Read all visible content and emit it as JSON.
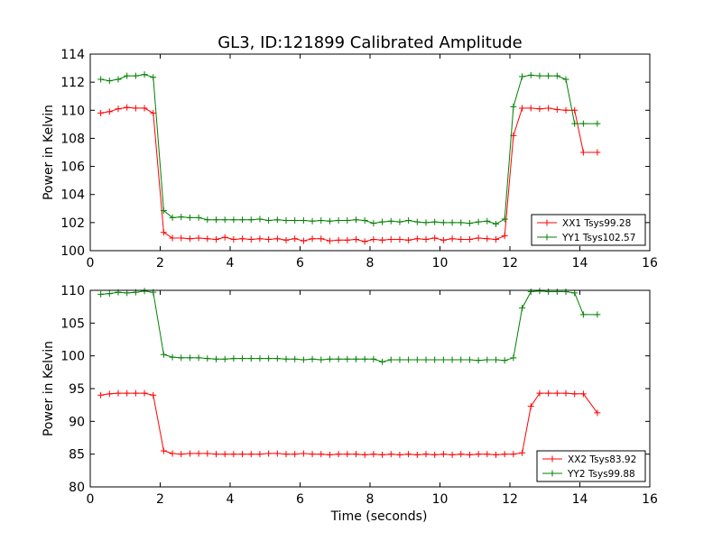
{
  "title": "GL3, ID:121899 Calibrated Amplitude",
  "colors": {
    "xx": "#ff0000",
    "yy": "#008000",
    "axis": "#000000"
  },
  "chart_data": [
    {
      "type": "line",
      "title": "GL3, ID:121899 Calibrated Amplitude",
      "xlabel": "",
      "ylabel": "Power in Kelvin",
      "xlim": [
        0,
        16
      ],
      "ylim": [
        100,
        114
      ],
      "xticks": [
        0,
        2,
        4,
        6,
        8,
        10,
        12,
        14,
        16
      ],
      "yticks": [
        100,
        102,
        104,
        106,
        108,
        110,
        112,
        114
      ],
      "legend_position": "bottom-right",
      "x": [
        0.3,
        0.55,
        0.8,
        1.05,
        1.3,
        1.55,
        1.8,
        2.1,
        2.35,
        2.6,
        2.85,
        3.1,
        3.35,
        3.6,
        3.85,
        4.1,
        4.35,
        4.6,
        4.85,
        5.1,
        5.35,
        5.6,
        5.85,
        6.1,
        6.35,
        6.6,
        6.85,
        7.1,
        7.35,
        7.6,
        7.85,
        8.1,
        8.35,
        8.6,
        8.85,
        9.1,
        9.35,
        9.6,
        9.85,
        10.1,
        10.35,
        10.6,
        10.85,
        11.1,
        11.35,
        11.6,
        11.85,
        12.1,
        12.35,
        12.6,
        12.85,
        13.1,
        13.35,
        13.6,
        13.85,
        14.1,
        14.5
      ],
      "series": [
        {
          "name": "XX1 Tsys99.28",
          "color": "#ff0000",
          "values": [
            109.8,
            109.9,
            110.1,
            110.2,
            110.15,
            110.15,
            109.8,
            101.3,
            100.9,
            100.9,
            100.85,
            100.9,
            100.85,
            100.8,
            100.95,
            100.8,
            100.85,
            100.8,
            100.85,
            100.8,
            100.85,
            100.75,
            100.85,
            100.7,
            100.85,
            100.85,
            100.7,
            100.75,
            100.75,
            100.8,
            100.65,
            100.8,
            100.75,
            100.8,
            100.8,
            100.75,
            100.85,
            100.8,
            100.9,
            100.75,
            100.85,
            100.8,
            100.8,
            100.9,
            100.85,
            100.8,
            101.05,
            108.2,
            110.15,
            110.15,
            110.1,
            110.15,
            110.05,
            110.0,
            110.0,
            107.0,
            107.0
          ]
        },
        {
          "name": "YY1 Tsys102.57",
          "color": "#008000",
          "values": [
            112.2,
            112.1,
            112.2,
            112.45,
            112.45,
            112.55,
            112.35,
            102.85,
            102.35,
            102.4,
            102.35,
            102.35,
            102.2,
            102.2,
            102.2,
            102.2,
            102.2,
            102.2,
            102.25,
            102.15,
            102.2,
            102.15,
            102.15,
            102.15,
            102.1,
            102.15,
            102.1,
            102.15,
            102.15,
            102.2,
            102.15,
            101.95,
            102.05,
            102.1,
            102.05,
            102.15,
            102.05,
            102.0,
            102.05,
            102.0,
            102.0,
            102.0,
            101.95,
            102.05,
            102.1,
            101.9,
            102.25,
            110.25,
            112.4,
            112.5,
            112.45,
            112.45,
            112.45,
            112.2,
            109.05,
            109.05,
            109.05
          ]
        }
      ]
    },
    {
      "type": "line",
      "title": "",
      "xlabel": "Time (seconds)",
      "ylabel": "Power in Kelvin",
      "xlim": [
        0,
        16
      ],
      "ylim": [
        80,
        110
      ],
      "xticks": [
        0,
        2,
        4,
        6,
        8,
        10,
        12,
        14,
        16
      ],
      "yticks": [
        80,
        85,
        90,
        95,
        100,
        105,
        110
      ],
      "legend_position": "bottom-right",
      "x": [
        0.3,
        0.55,
        0.8,
        1.05,
        1.3,
        1.55,
        1.8,
        2.1,
        2.35,
        2.6,
        2.85,
        3.1,
        3.35,
        3.6,
        3.85,
        4.1,
        4.35,
        4.6,
        4.85,
        5.1,
        5.35,
        5.6,
        5.85,
        6.1,
        6.35,
        6.6,
        6.85,
        7.1,
        7.35,
        7.6,
        7.85,
        8.1,
        8.35,
        8.6,
        8.85,
        9.1,
        9.35,
        9.6,
        9.85,
        10.1,
        10.35,
        10.6,
        10.85,
        11.1,
        11.35,
        11.6,
        11.85,
        12.1,
        12.35,
        12.6,
        12.85,
        13.1,
        13.35,
        13.6,
        13.85,
        14.1,
        14.5
      ],
      "series": [
        {
          "name": "XX2 Tsys83.92",
          "color": "#ff0000",
          "values": [
            94.0,
            94.2,
            94.3,
            94.3,
            94.3,
            94.3,
            94.0,
            85.5,
            85.1,
            85.0,
            85.1,
            85.1,
            85.1,
            85.0,
            85.0,
            85.0,
            85.0,
            85.0,
            85.0,
            85.1,
            85.1,
            85.0,
            85.0,
            85.1,
            85.0,
            85.0,
            84.9,
            85.0,
            85.0,
            85.0,
            84.9,
            85.0,
            84.9,
            85.0,
            84.9,
            85.0,
            84.9,
            85.0,
            84.9,
            85.0,
            84.9,
            85.0,
            84.9,
            85.0,
            85.0,
            84.9,
            85.0,
            85.0,
            85.2,
            92.3,
            94.3,
            94.3,
            94.3,
            94.3,
            94.2,
            94.2,
            91.3
          ]
        },
        {
          "name": "YY2 Tsys99.88",
          "color": "#008000",
          "values": [
            109.4,
            109.5,
            109.7,
            109.6,
            109.7,
            109.9,
            109.7,
            100.2,
            99.8,
            99.7,
            99.7,
            99.7,
            99.6,
            99.5,
            99.5,
            99.6,
            99.6,
            99.6,
            99.6,
            99.6,
            99.6,
            99.5,
            99.5,
            99.4,
            99.5,
            99.4,
            99.5,
            99.5,
            99.5,
            99.5,
            99.5,
            99.5,
            99.1,
            99.4,
            99.4,
            99.4,
            99.4,
            99.4,
            99.4,
            99.4,
            99.4,
            99.4,
            99.4,
            99.3,
            99.4,
            99.4,
            99.3,
            99.7,
            107.3,
            109.8,
            109.9,
            109.8,
            109.8,
            109.8,
            109.6,
            106.3,
            106.3
          ]
        }
      ]
    }
  ]
}
